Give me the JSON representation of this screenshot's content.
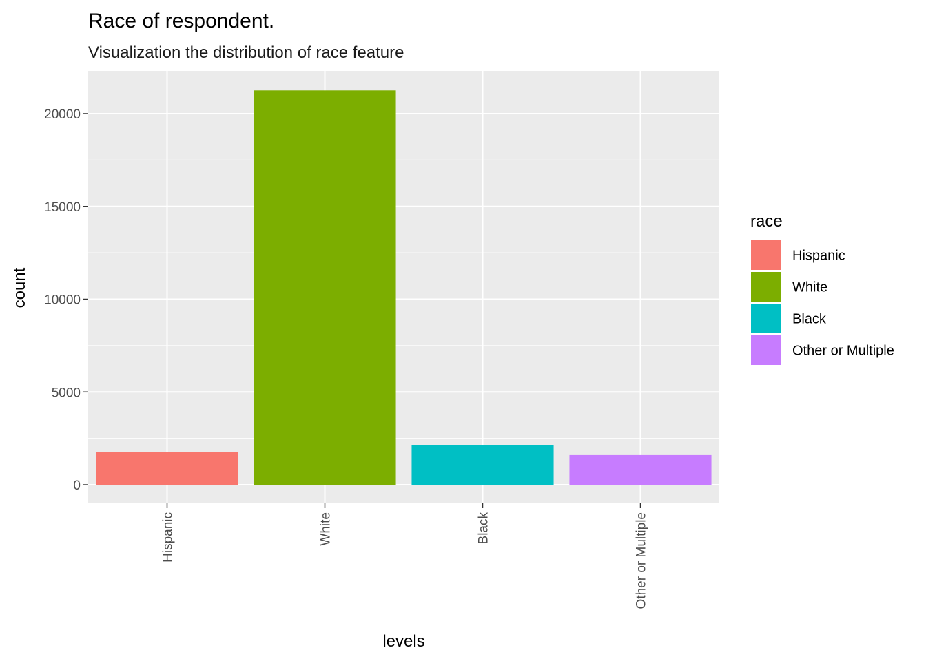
{
  "chart_data": {
    "type": "bar",
    "title": "Race of respondent.",
    "subtitle": "Visualization the distribution of race feature",
    "xlabel": "levels",
    "ylabel": "count",
    "categories": [
      "Hispanic",
      "White",
      "Black",
      "Other or Multiple"
    ],
    "values": [
      1750,
      21250,
      2130,
      1600
    ],
    "colors": [
      "#F8766D",
      "#7CAE00",
      "#00BFC4",
      "#C77CFF"
    ],
    "ylim": [
      -1000,
      22300
    ],
    "yticks": [
      0,
      5000,
      10000,
      15000,
      20000
    ],
    "ytick_labels": [
      "0",
      "5000",
      "10000",
      "15000",
      "20000"
    ],
    "x_tick_rotation": -90,
    "grid": true,
    "panel_background": "#EBEBEB",
    "legend": {
      "title": "race",
      "position": "right",
      "entries": [
        "Hispanic",
        "White",
        "Black",
        "Other or Multiple"
      ]
    }
  }
}
